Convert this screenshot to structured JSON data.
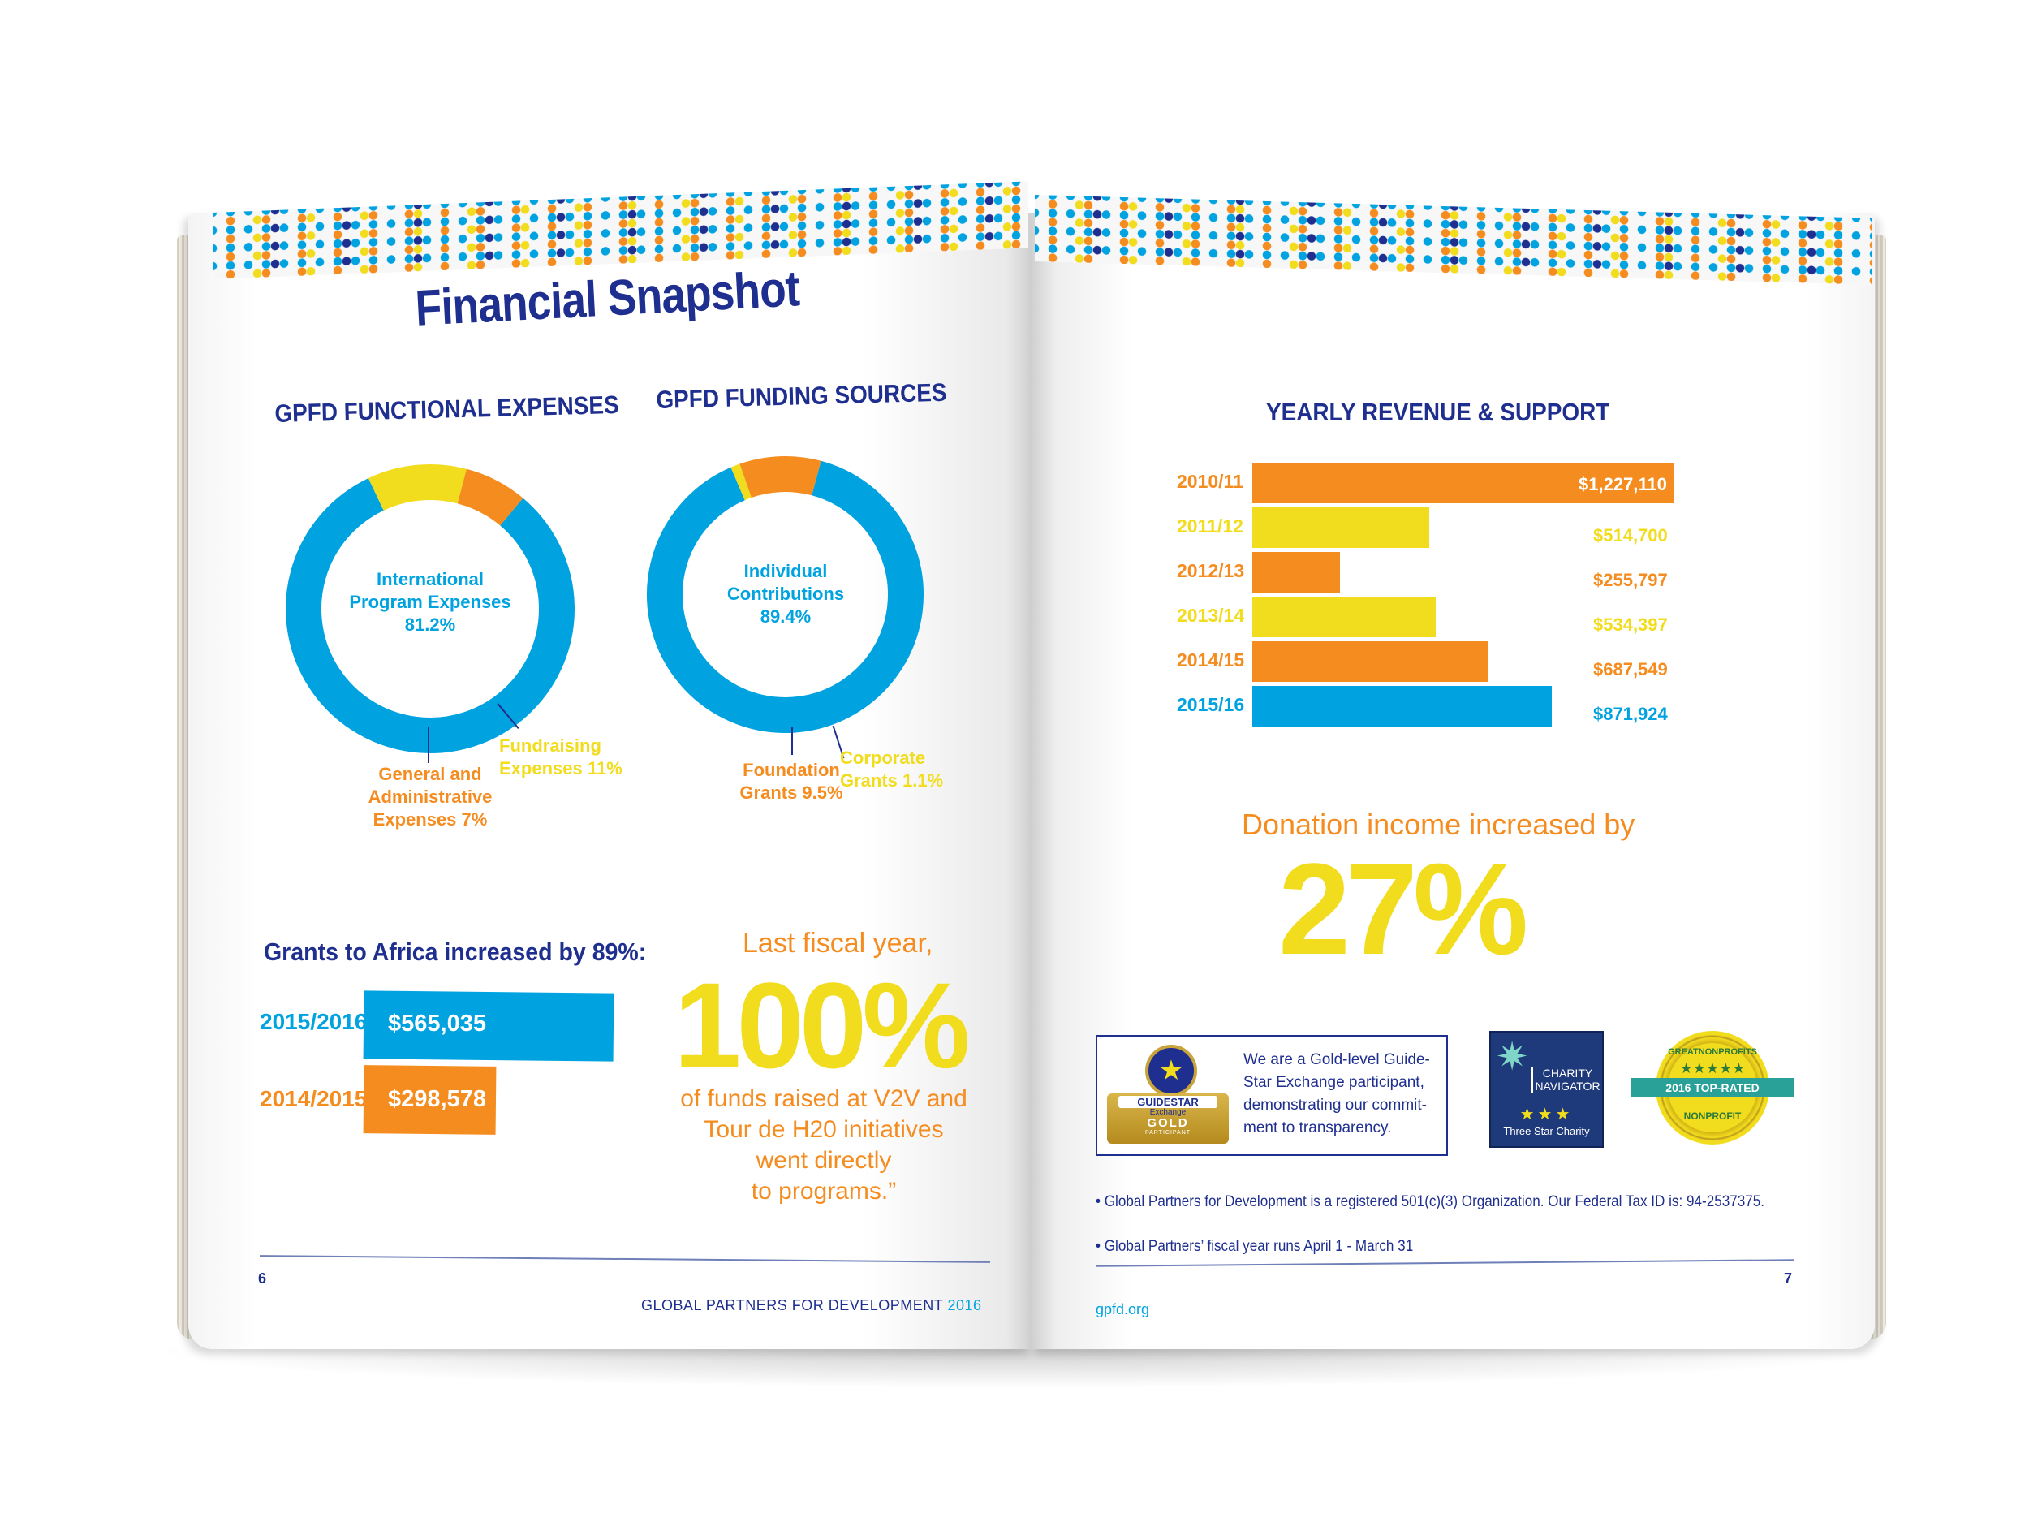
{
  "left_page": {
    "title": "Financial Snapshot",
    "functional_expenses": {
      "heading": "GPFD FUNCTIONAL EXPENSES",
      "center_line1": "International",
      "center_line2": "Program Expenses",
      "center_line3": "81.2%",
      "general_line1": "General and",
      "general_line2": "Administrative",
      "general_line3": "Expenses 7%",
      "fund_line1": "Fundraising",
      "fund_line2": "Expenses 11%"
    },
    "funding_sources": {
      "heading": "GPFD FUNDING SOURCES",
      "center_line1": "Individual",
      "center_line2": "Contributions",
      "center_line3": "89.4%",
      "foundation_line1": "Foundation",
      "foundation_line2": "Grants 9.5%",
      "corporate_line1": "Corporate",
      "corporate_line2": "Grants 1.1%"
    },
    "grants": {
      "heading": "Grants to Africa increased by 89%:",
      "rows": [
        {
          "label": "2015/2016",
          "value": "$565,035"
        },
        {
          "label": "2014/2015",
          "value": "$298,578"
        }
      ]
    },
    "fiscal": {
      "intro": "Last fiscal year,",
      "big": "100%",
      "line1": "of funds raised at V2V and",
      "line2": "Tour de H20 initiatives",
      "line3": "went directly",
      "line4": "to programs.”"
    },
    "footer": {
      "page_number": "6",
      "org": "GLOBAL PARTNERS FOR DEVELOPMENT",
      "year": "2016"
    }
  },
  "right_page": {
    "revenue_heading": "YEARLY REVENUE & SUPPORT",
    "donation_text": "Donation income increased by",
    "donation_big": "27%",
    "guidestar": {
      "logo_line1": "GUIDESTAR",
      "logo_line2": "Exchange",
      "logo_line3": "GOLD",
      "logo_line4": "PARTICIPANT",
      "text_line1": "We are a Gold-level Guide-",
      "text_line2": "Star Exchange participant,",
      "text_line3": "demonstrating our commit-",
      "text_line4": "ment to transparency."
    },
    "charity_navigator": {
      "line1": "CHARITY",
      "line2": "NAVIGATOR",
      "stars": "★★★",
      "line3": "Three Star Charity"
    },
    "great_nonprofits": {
      "top": "GREATNONPROFITS",
      "ribbon": "2016 TOP-RATED",
      "bottom": "NONPROFIT"
    },
    "note1": "• Global Partners for Development is a registered 501(c)(3) Organization. Our Federal Tax ID is: 94-2537375.",
    "note2": "• Global Partners’ fiscal year runs April 1 - March 31",
    "footer": {
      "site": "gpfd.org",
      "page_number": "7"
    }
  },
  "colors": {
    "navy": "#1f2f8f",
    "blue": "#00a3e0",
    "orange": "#f58c1f",
    "yellow": "#f2dc1e"
  },
  "chart_data": [
    {
      "type": "pie",
      "title": "GPFD FUNCTIONAL EXPENSES",
      "categories": [
        "International Program Expenses",
        "Fundraising Expenses",
        "General and Administrative Expenses"
      ],
      "values": [
        81.2,
        11,
        7
      ],
      "colors": [
        "#00a3e0",
        "#f2dc1e",
        "#f58c1f"
      ]
    },
    {
      "type": "pie",
      "title": "GPFD FUNDING SOURCES",
      "categories": [
        "Individual Contributions",
        "Corporate Grants",
        "Foundation Grants"
      ],
      "values": [
        89.4,
        1.1,
        9.5
      ],
      "colors": [
        "#00a3e0",
        "#f2dc1e",
        "#f58c1f"
      ]
    },
    {
      "type": "bar",
      "title": "YEARLY REVENUE & SUPPORT",
      "categories": [
        "2010/11",
        "2011/12",
        "2012/13",
        "2013/14",
        "2014/15",
        "2015/16"
      ],
      "values": [
        1227110,
        514700,
        255797,
        534397,
        687549,
        871924
      ],
      "labels": [
        "$1,227,110",
        "$514,700",
        "$255,797",
        "$534,397",
        "$687,549",
        "$871,924"
      ],
      "colors": [
        "#f58c1f",
        "#f2dc1e",
        "#f58c1f",
        "#f2dc1e",
        "#f58c1f",
        "#00a3e0"
      ]
    },
    {
      "type": "bar",
      "title": "Grants to Africa increased by 89%:",
      "categories": [
        "2015/2016",
        "2014/2015"
      ],
      "values": [
        565035,
        298578
      ],
      "labels": [
        "$565,035",
        "$298,578"
      ],
      "colors": [
        "#00a3e0",
        "#f58c1f"
      ]
    }
  ]
}
